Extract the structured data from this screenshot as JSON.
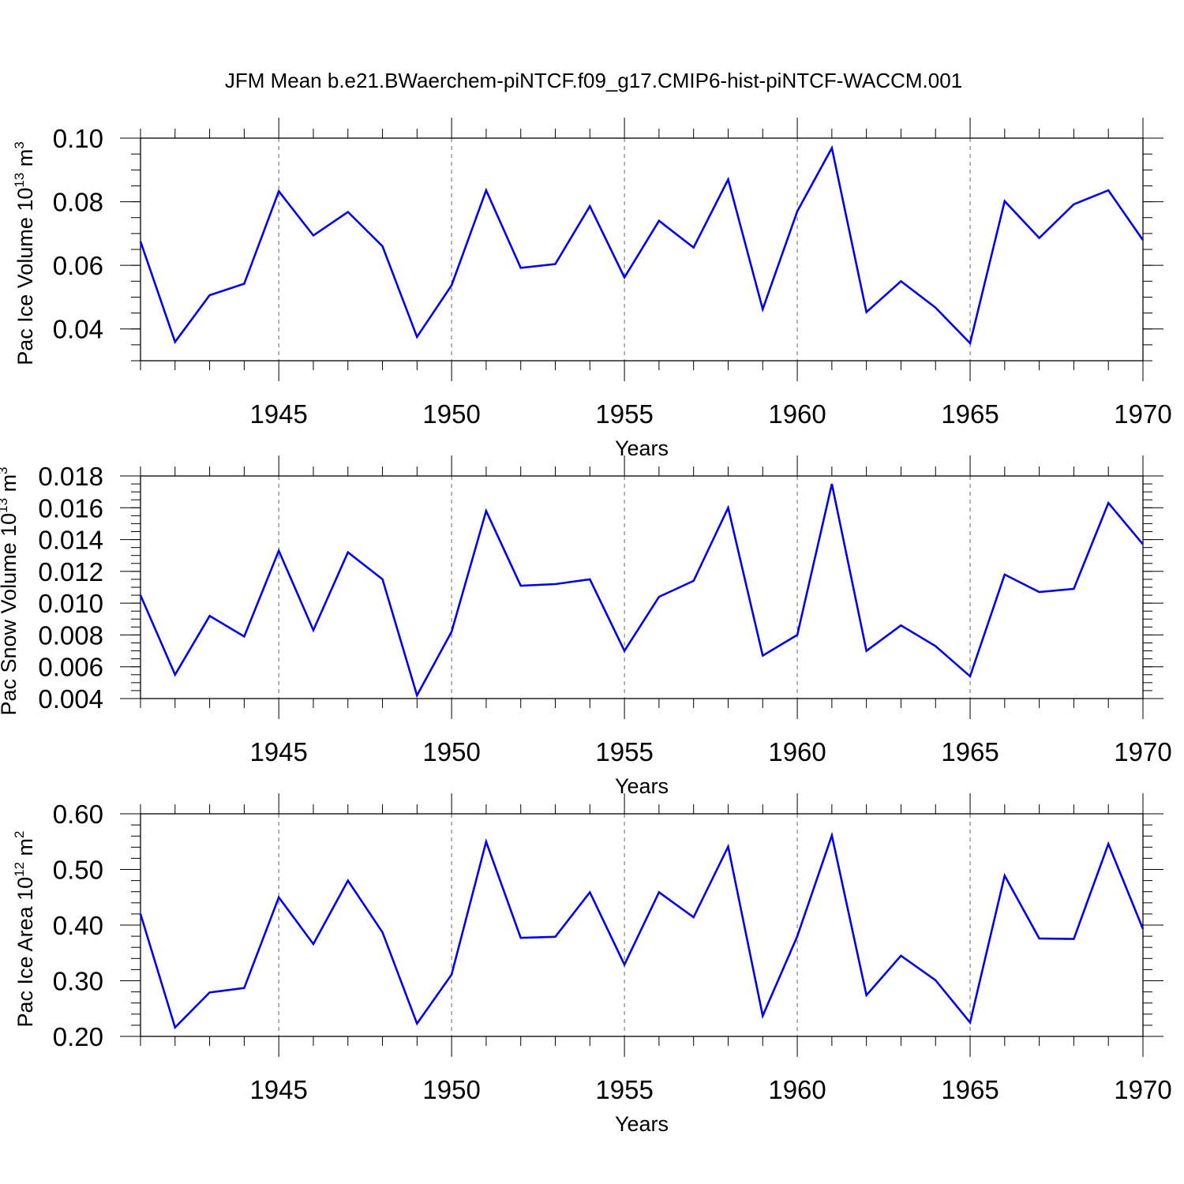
{
  "figure": {
    "title": "JFM Mean b.e21.BWaerchem-piNTCF.f09_g17.CMIP6-hist-piNTCF-WACCM.001"
  },
  "colors": {
    "line": "#0000ee",
    "axis": "#000000",
    "grid": "#666666"
  },
  "chart_data": [
    {
      "type": "line",
      "ylabel": {
        "main": "Pac Ice Volume 10",
        "exp": "13",
        "unit": " m",
        "unit_exp": "3"
      },
      "xlabel": "Years",
      "xlim": [
        1941,
        1970
      ],
      "ylim": [
        0.03,
        0.1
      ],
      "yticks": [
        0.04,
        0.06,
        0.08,
        0.1
      ],
      "ytick_labels": [
        "0.04",
        "0.06",
        "0.08",
        "0.10"
      ],
      "yminor_step": 0.005,
      "xticks": [
        1945,
        1950,
        1955,
        1960,
        1965,
        1970
      ],
      "xtick_labels": [
        "1945",
        "1950",
        "1955",
        "1960",
        "1965",
        "1970"
      ],
      "grid": "dashed vertical at major x ticks",
      "x": [
        1941,
        1942,
        1943,
        1944,
        1945,
        1946,
        1947,
        1948,
        1949,
        1950,
        1951,
        1952,
        1953,
        1954,
        1955,
        1956,
        1957,
        1958,
        1959,
        1960,
        1961,
        1962,
        1963,
        1964,
        1965,
        1966,
        1967,
        1968,
        1969,
        1970
      ],
      "values": [
        0.0675,
        0.0359,
        0.0506,
        0.0542,
        0.0833,
        0.0694,
        0.0768,
        0.066,
        0.0375,
        0.0537,
        0.0836,
        0.0592,
        0.0604,
        0.0786,
        0.0562,
        0.074,
        0.0656,
        0.087,
        0.0462,
        0.077,
        0.0969,
        0.0453,
        0.055,
        0.0467,
        0.0355,
        0.0802,
        0.0686,
        0.0792,
        0.0836,
        0.0679
      ]
    },
    {
      "type": "line",
      "ylabel": {
        "main": "Pac Snow Volume 10",
        "exp": "13",
        "unit": " m",
        "unit_exp": "3"
      },
      "xlabel": "Years",
      "xlim": [
        1941,
        1970
      ],
      "ylim": [
        0.004,
        0.018
      ],
      "yticks": [
        0.004,
        0.006,
        0.008,
        0.01,
        0.012,
        0.014,
        0.016,
        0.018
      ],
      "ytick_labels": [
        "0.004",
        "0.006",
        "0.008",
        "0.010",
        "0.012",
        "0.014",
        "0.016",
        "0.018"
      ],
      "yminor_step": 0.0005,
      "xticks": [
        1945,
        1950,
        1955,
        1960,
        1965,
        1970
      ],
      "xtick_labels": [
        "1945",
        "1950",
        "1955",
        "1960",
        "1965",
        "1970"
      ],
      "grid": "dashed vertical at major x ticks",
      "x": [
        1941,
        1942,
        1943,
        1944,
        1945,
        1946,
        1947,
        1948,
        1949,
        1950,
        1951,
        1952,
        1953,
        1954,
        1955,
        1956,
        1957,
        1958,
        1959,
        1960,
        1961,
        1962,
        1963,
        1964,
        1965,
        1966,
        1967,
        1968,
        1969,
        1970
      ],
      "values": [
        0.0105,
        0.0055,
        0.0092,
        0.0079,
        0.0133,
        0.0083,
        0.0132,
        0.0115,
        0.0042,
        0.0082,
        0.0158,
        0.0111,
        0.0112,
        0.0115,
        0.007,
        0.0104,
        0.0114,
        0.016,
        0.0067,
        0.008,
        0.0175,
        0.007,
        0.0086,
        0.0073,
        0.0054,
        0.0118,
        0.0107,
        0.0109,
        0.0163,
        0.0137
      ]
    },
    {
      "type": "line",
      "ylabel": {
        "main": "Pac Ice Area 10",
        "exp": "12",
        "unit": " m",
        "unit_exp": "2"
      },
      "xlabel": "Years",
      "xlim": [
        1941,
        1970
      ],
      "ylim": [
        0.2,
        0.6
      ],
      "yticks": [
        0.2,
        0.3,
        0.4,
        0.5,
        0.6
      ],
      "ytick_labels": [
        "0.20",
        "0.30",
        "0.40",
        "0.50",
        "0.60"
      ],
      "yminor_step": 0.02,
      "xticks": [
        1945,
        1950,
        1955,
        1960,
        1965,
        1970
      ],
      "xtick_labels": [
        "1945",
        "1950",
        "1955",
        "1960",
        "1965",
        "1970"
      ],
      "grid": "dashed vertical at major x ticks",
      "x": [
        1941,
        1942,
        1943,
        1944,
        1945,
        1946,
        1947,
        1948,
        1949,
        1950,
        1951,
        1952,
        1953,
        1954,
        1955,
        1956,
        1957,
        1958,
        1959,
        1960,
        1961,
        1962,
        1963,
        1964,
        1965,
        1966,
        1967,
        1968,
        1969,
        1970
      ],
      "values": [
        0.42,
        0.216,
        0.279,
        0.287,
        0.45,
        0.366,
        0.48,
        0.387,
        0.223,
        0.311,
        0.55,
        0.377,
        0.379,
        0.459,
        0.329,
        0.459,
        0.414,
        0.541,
        0.237,
        0.38,
        0.561,
        0.274,
        0.345,
        0.301,
        0.225,
        0.489,
        0.376,
        0.375,
        0.546,
        0.393
      ]
    }
  ]
}
